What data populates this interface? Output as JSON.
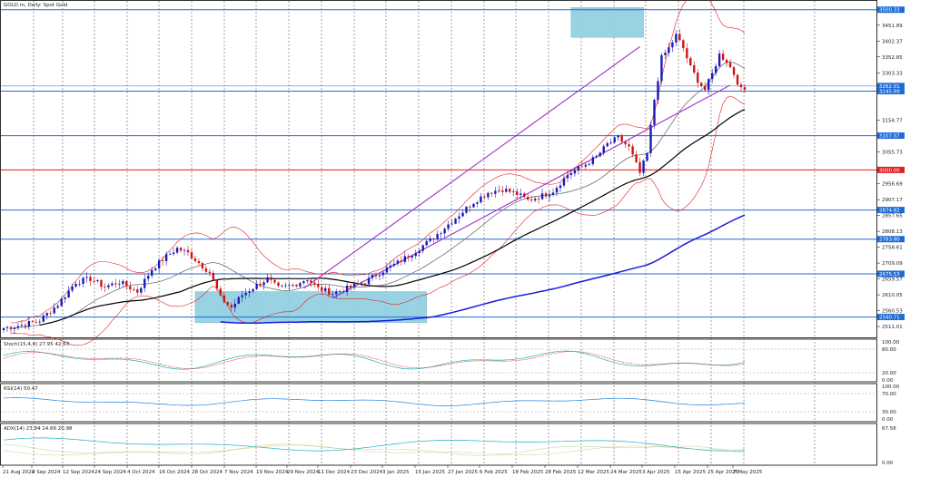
{
  "window": {
    "title": "GOLD.m, Daily:  Spot Gold"
  },
  "panels": {
    "stoch": {
      "label": "Stoch(15,4,4) 27.95 42.63",
      "levels": [
        "100.00",
        "80.00",
        "20.00",
        "0.00"
      ]
    },
    "rsi": {
      "label": "RSI(14) 50.47",
      "levels": [
        "100.00",
        "70.00",
        "30.00",
        "0.00"
      ]
    },
    "adx": {
      "label": "ADX(14) 23.84 14.66 20.98",
      "levels": [
        "67.56",
        "0.00"
      ]
    }
  },
  "price_axis": {
    "ticks": [
      "3451.89",
      "3402.37",
      "3352.85",
      "3303.33",
      "3254.29",
      "3154.77",
      "3055.73",
      "2956.69",
      "2907.17",
      "2857.65",
      "2808.13",
      "2758.61",
      "2709.09",
      "2659.57",
      "2610.05",
      "2560.53",
      "2511.01"
    ],
    "price_tags": [
      {
        "text": "3500.33",
        "color": "#1e6bd6"
      },
      {
        "text": "3262.01",
        "color": "#1e6bd6"
      },
      {
        "text": "3245.89",
        "color": "#1e6bd6"
      },
      {
        "text": "3107.07",
        "color": "#1e6bd6"
      },
      {
        "text": "3000.00",
        "color": "#e02020"
      },
      {
        "text": "2874.82",
        "color": "#1e6bd6"
      },
      {
        "text": "2783.80",
        "color": "#1e6bd6"
      },
      {
        "text": "2675.53",
        "color": "#1e6bd6"
      },
      {
        "text": "2540.71",
        "color": "#1e6bd6"
      }
    ]
  },
  "chart_data": {
    "type": "candlestick",
    "symbol": "GOLD.m",
    "timeframe": "Daily",
    "x_labels": [
      "21 Aug 2024",
      "2 Sep 2024",
      "12 Sep 2024",
      "24 Sep 2024",
      "4 Oct 2024",
      "16 Oct 2024",
      "28 Oct 2024",
      "7 Nov 2024",
      "19 Nov 2024",
      "29 Nov 2024",
      "11 Dec 2024",
      "23 Dec 2024",
      "3 Jan 2025",
      "15 Jan 2025",
      "27 Jan 2025",
      "6 Feb 2025",
      "18 Feb 2025",
      "28 Feb 2025",
      "12 Mar 2025",
      "24 Mar 2025",
      "3 Apr 2025",
      "15 Apr 2025",
      "25 Apr 2025",
      "7 May 2025"
    ],
    "ylim": [
      2480,
      3525
    ],
    "horizontal_levels": [
      {
        "price": 3500.33,
        "color": "#1e6bd6"
      },
      {
        "price": 3245.89,
        "color": "#1e6bd6"
      },
      {
        "price": 3107.07,
        "color": "#1e6bd6"
      },
      {
        "price": 3000.0,
        "color": "#e02020"
      },
      {
        "price": 2874.82,
        "color": "#1e6bd6"
      },
      {
        "price": 2783.8,
        "color": "#1e6bd6"
      },
      {
        "price": 2675.53,
        "color": "#1e6bd6"
      },
      {
        "price": 2540.71,
        "color": "#1e6bd6"
      }
    ],
    "zones": [
      {
        "x_from": 157,
        "x_to": 177,
        "price_from": 3414,
        "price_to": 3507,
        "color": "#8fcfe0"
      },
      {
        "x_from": 53,
        "x_to": 117,
        "price_from": 2523,
        "price_to": 2620,
        "color": "#8fcfe0"
      }
    ],
    "trendlines": [
      {
        "x1": 83,
        "p1": 2630,
        "x2": 176,
        "p2": 3385,
        "color": "#9b30c8"
      },
      {
        "x1": 91,
        "p1": 2600,
        "x2": 201,
        "p2": 3265,
        "color": "#9b30c8"
      }
    ],
    "candles_summary": "Daily OHLC from Aug 2024 to May 2025; approximate close path below",
    "close_path": [
      [
        0,
        2506
      ],
      [
        5,
        2515
      ],
      [
        10,
        2530
      ],
      [
        15,
        2580
      ],
      [
        20,
        2650
      ],
      [
        24,
        2660
      ],
      [
        28,
        2635
      ],
      [
        32,
        2650
      ],
      [
        37,
        2620
      ],
      [
        41,
        2690
      ],
      [
        45,
        2730
      ],
      [
        48,
        2755
      ],
      [
        51,
        2740
      ],
      [
        54,
        2710
      ],
      [
        57,
        2680
      ],
      [
        60,
        2600
      ],
      [
        63,
        2570
      ],
      [
        66,
        2610
      ],
      [
        70,
        2640
      ],
      [
        73,
        2660
      ],
      [
        76,
        2630
      ],
      [
        80,
        2640
      ],
      [
        84,
        2660
      ],
      [
        87,
        2630
      ],
      [
        91,
        2615
      ],
      [
        95,
        2630
      ],
      [
        100,
        2650
      ],
      [
        104,
        2680
      ],
      [
        109,
        2710
      ],
      [
        113,
        2740
      ],
      [
        118,
        2780
      ],
      [
        122,
        2820
      ],
      [
        126,
        2860
      ],
      [
        130,
        2900
      ],
      [
        134,
        2930
      ],
      [
        138,
        2940
      ],
      [
        142,
        2925
      ],
      [
        145,
        2905
      ],
      [
        149,
        2920
      ],
      [
        152,
        2935
      ],
      [
        156,
        2985
      ],
      [
        160,
        3010
      ],
      [
        164,
        3040
      ],
      [
        167,
        3080
      ],
      [
        170,
        3100
      ],
      [
        173,
        3070
      ],
      [
        176,
        2990
      ],
      [
        178,
        3050
      ],
      [
        180,
        3220
      ],
      [
        182,
        3350
      ],
      [
        184,
        3380
      ],
      [
        186,
        3420
      ],
      [
        188,
        3380
      ],
      [
        190,
        3320
      ],
      [
        192,
        3280
      ],
      [
        194,
        3250
      ],
      [
        196,
        3300
      ],
      [
        198,
        3360
      ],
      [
        200,
        3340
      ],
      [
        202,
        3300
      ],
      [
        204,
        3250
      ]
    ],
    "indicators": {
      "stochastic": {
        "params": "15,4,4",
        "values": [
          27.95,
          42.63
        ]
      },
      "rsi": {
        "period": 14,
        "value": 50.47
      },
      "adx": {
        "period": 14,
        "values": [
          23.84,
          14.66,
          20.98
        ]
      }
    },
    "grid": true
  }
}
